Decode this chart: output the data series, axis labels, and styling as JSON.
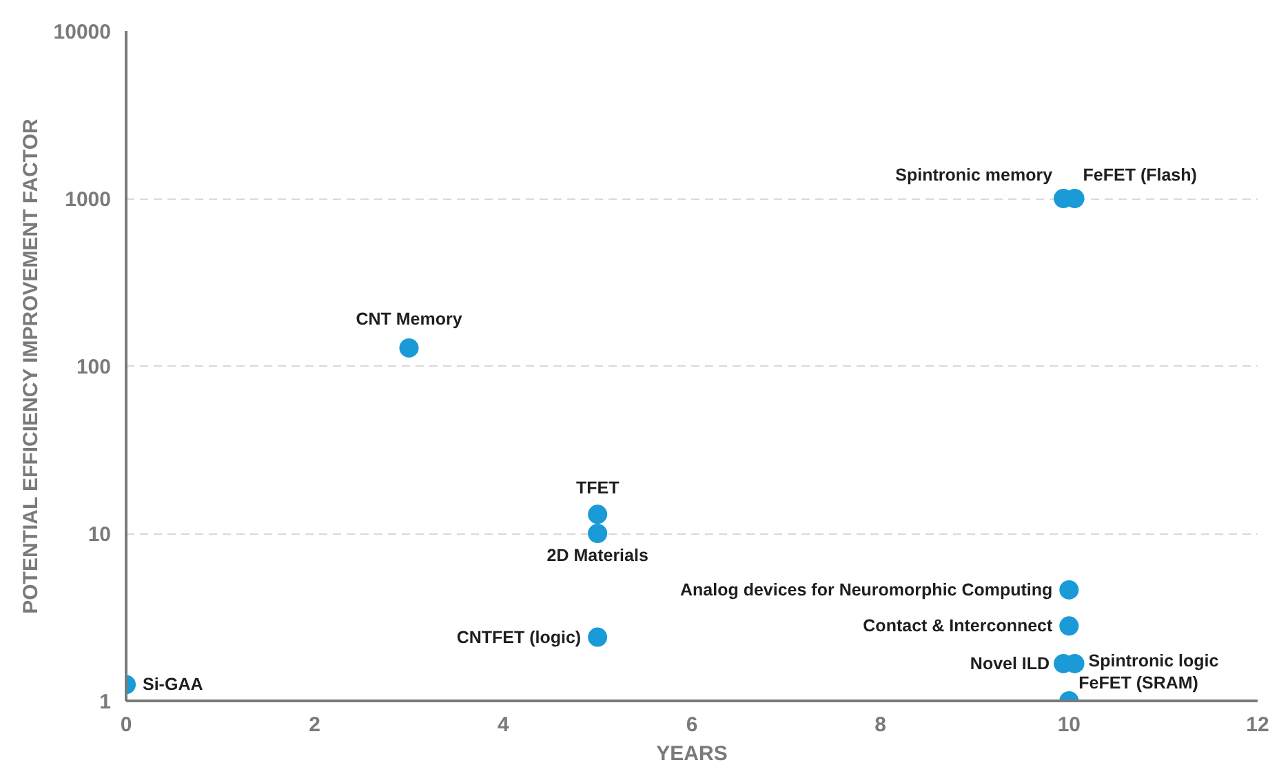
{
  "chart_data": {
    "type": "scatter",
    "xlabel": "YEARS",
    "ylabel": "POTENTIAL EFFICIENCY IMPROVEMENT FACTOR",
    "x": [
      0,
      3,
      5,
      5,
      5,
      9.94,
      10.06,
      10,
      10,
      9.94,
      10.06,
      10
    ],
    "series": [
      {
        "color": "#1a9ad6",
        "values": [
          1.25,
          128,
          13,
          10,
          2.4,
          1000,
          1000,
          4.6,
          2.8,
          1.67,
          1.67,
          1
        ]
      }
    ],
    "xlim": [
      0,
      12
    ],
    "xticks": [
      0,
      2,
      4,
      6,
      8,
      10,
      12
    ],
    "ylim": [
      1,
      10000
    ],
    "yticks": [
      1,
      10,
      100,
      1000,
      10000
    ],
    "log": "y",
    "grid": "y",
    "marker": "circle",
    "annotations": [
      {
        "text": "Si-GAA",
        "x": 0,
        "y": 1.25
      },
      {
        "text": "CNT Memory",
        "x": 3,
        "y": 128
      },
      {
        "text": "TFET",
        "x": 5,
        "y": 13
      },
      {
        "text": "2D Materials",
        "x": 5,
        "y": 10
      },
      {
        "text": "CNTFET (logic)",
        "x": 5,
        "y": 2.4
      },
      {
        "text": "Spintronic memory",
        "x": 9.94,
        "y": 1000
      },
      {
        "text": "FeFET (Flash)",
        "x": 10.06,
        "y": 1000
      },
      {
        "text": "Analog devices for Neuromorphic Computing",
        "x": 10,
        "y": 4.6
      },
      {
        "text": "Contact & Interconnect",
        "x": 10,
        "y": 2.8
      },
      {
        "text": "Novel ILD",
        "x": 9.94,
        "y": 1.67
      },
      {
        "text": "Spintronic logic",
        "x": 10.06,
        "y": 1.67
      },
      {
        "text": "FeFET (SRAM)",
        "x": 10,
        "y": 1
      }
    ]
  }
}
